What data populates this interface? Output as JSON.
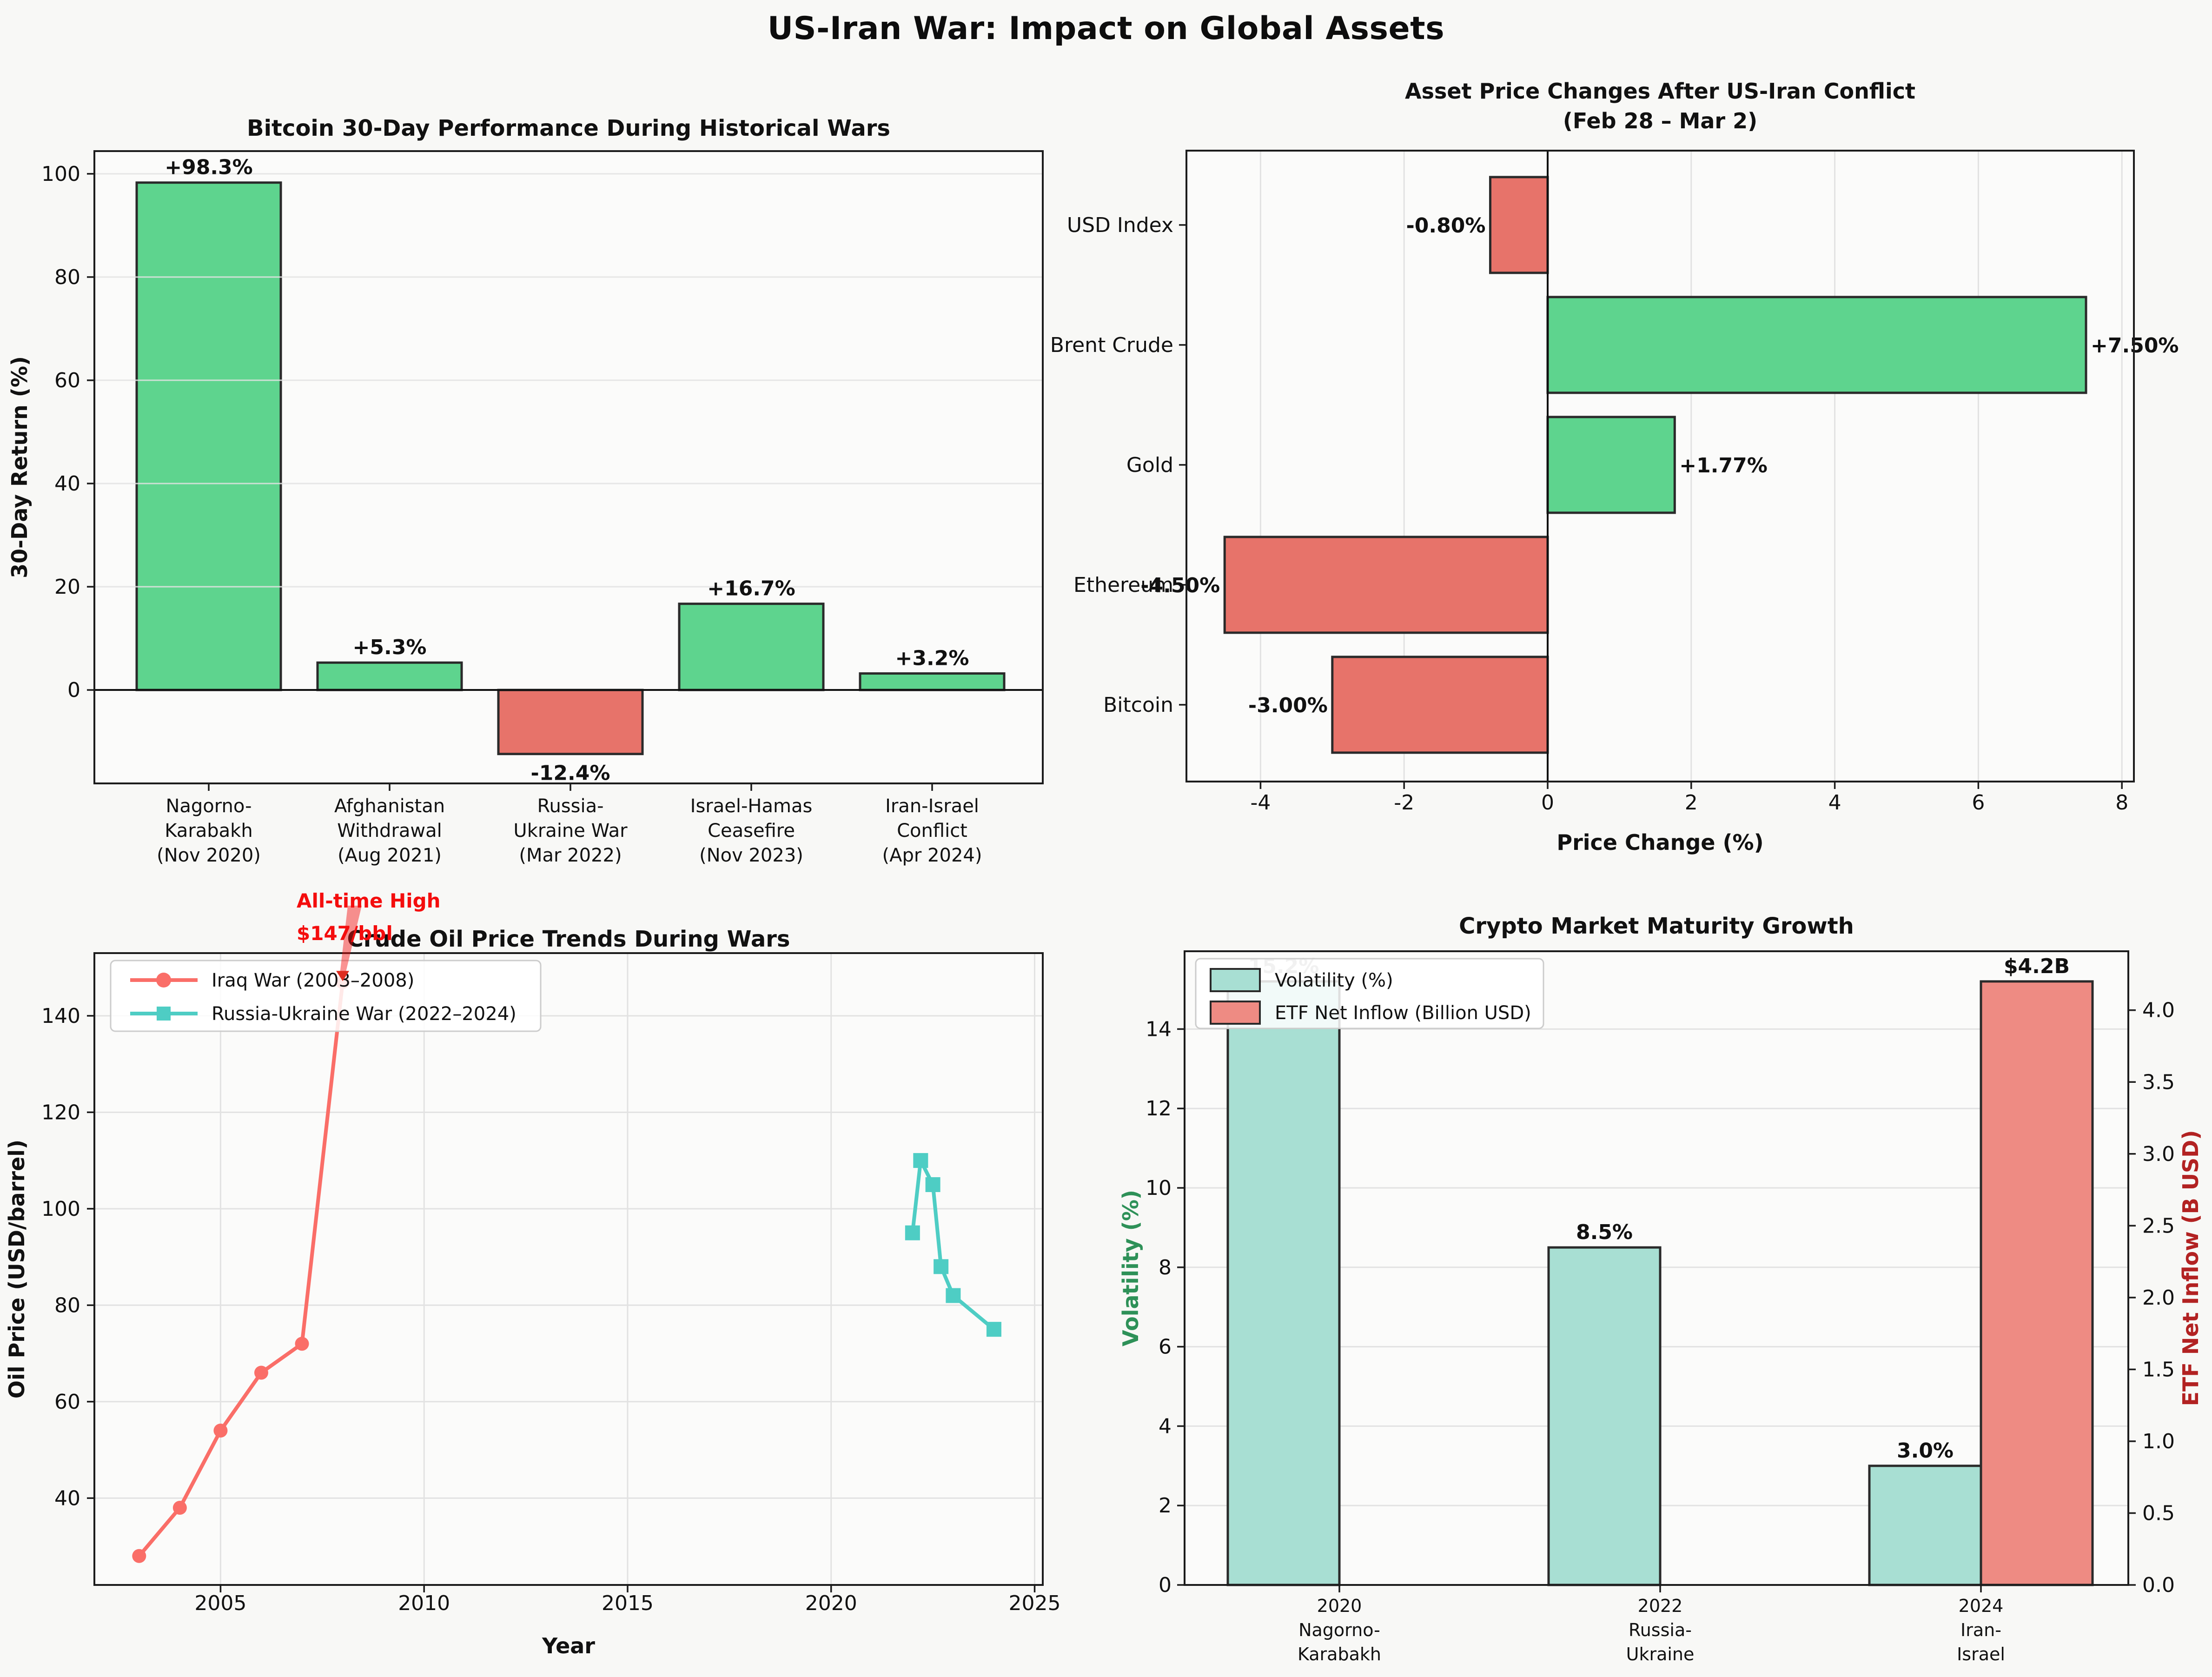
{
  "page_title": "US-Iran War: Impact on Global Assets",
  "colors": {
    "background": "#F8F8F6",
    "plot_background": "#FBFBFA",
    "positive_green": "#5ED48E",
    "negative_red": "#E7736A",
    "iraq_line_red": "#FA6E68",
    "russia_teal": "#4ECDC4",
    "volatility_mint": "#A8DFD3",
    "etf_salmon": "#EE8B83",
    "volatility_axis_green": "#2E9158",
    "etf_axis_darkred": "#B22222",
    "annotation_red": "#F40D0D",
    "grid": "#E2E2E2",
    "spine": "#1C1C1C",
    "bar_edge": "#2A2A2A",
    "zero_line": "#111111",
    "text": "#111111",
    "muted_label": "#A0A0A0",
    "legend_border": "#CCCCCC"
  },
  "chart_data": [
    {
      "id": "bitcoin-performance",
      "type": "bar",
      "title": "Bitcoin 30-Day Performance During Historical Wars",
      "ylabel": "30-Day Return (%)",
      "ylim": [
        -18.1,
        104.4
      ],
      "yticks": [
        0,
        20,
        40,
        60,
        80,
        100
      ],
      "grid": "horizontal",
      "categories": [
        [
          "Nagorno-",
          "Karabakh",
          "(Nov 2020)"
        ],
        [
          "Afghanistan",
          "Withdrawal",
          "(Aug 2021)"
        ],
        [
          "Russia-",
          "Ukraine War",
          "(Mar 2022)"
        ],
        [
          "Israel-Hamas",
          "Ceasefire",
          "(Nov 2023)"
        ],
        [
          "Iran-Israel",
          "Conflict",
          "(Apr 2024)"
        ]
      ],
      "values": [
        98.3,
        5.3,
        -12.4,
        16.7,
        3.2
      ],
      "value_labels": [
        "+98.3%",
        "+5.3%",
        "-12.4%",
        "+16.7%",
        "+3.2%"
      ]
    },
    {
      "id": "asset-price-changes",
      "type": "hbar",
      "title_lines": [
        "Asset Price Changes After US-Iran Conflict",
        "(Feb 28 – Mar 2)"
      ],
      "xlabel": "Price Change (%)",
      "xticks": [
        -4,
        -2,
        0,
        2,
        4,
        6,
        8
      ],
      "grid": "vertical",
      "categories": [
        "Bitcoin",
        "Ethereum",
        "Gold",
        "Brent Crude",
        "USD Index"
      ],
      "values": [
        -3.0,
        -4.5,
        1.77,
        7.5,
        -0.8
      ],
      "value_labels": [
        "-3.00%",
        "-4.50%",
        "+1.77%",
        "+7.50%",
        "-0.80%"
      ]
    },
    {
      "id": "oil-price-trends",
      "type": "line",
      "title": "Crude Oil Price Trends During Wars",
      "xlabel": "Year",
      "ylabel": "Oil Price (USD/barrel)",
      "xlim": [
        2001.9,
        2025.2
      ],
      "ylim": [
        22,
        153
      ],
      "xticks": [
        2005,
        2010,
        2015,
        2020,
        2025
      ],
      "yticks": [
        40,
        60,
        80,
        100,
        120,
        140
      ],
      "grid": "both",
      "series": [
        {
          "name": "Iraq War (2003–2008)",
          "marker": "circle",
          "color_key": "iraq_line_red",
          "x": [
            2003,
            2004,
            2005,
            2006,
            2007,
            2008
          ],
          "y": [
            28,
            38,
            54,
            66,
            72,
            147
          ]
        },
        {
          "name": "Russia-Ukraine War (2022–2024)",
          "marker": "square",
          "color_key": "russia_teal",
          "x": [
            2022,
            2022.2,
            2022.5,
            2022.7,
            2023,
            2024
          ],
          "y": [
            95,
            110,
            105,
            88,
            82,
            75
          ]
        }
      ],
      "annotation": {
        "text_lines": [
          "All-time High",
          "$147/bbl"
        ],
        "target_x": 2008,
        "target_y": 147
      }
    },
    {
      "id": "crypto-maturity",
      "type": "dual_bar",
      "title": "Crypto Market Maturity Growth",
      "ylabel_left": "Volatility (%)",
      "ylabel_right": "ETF Net Inflow (B USD)",
      "ylim_left": [
        0,
        15.96
      ],
      "yticks_left": [
        0,
        2,
        4,
        6,
        8,
        10,
        12,
        14
      ],
      "ylim_right": [
        0,
        4.41
      ],
      "yticks_right": [
        "0.0",
        "0.5",
        "1.0",
        "1.5",
        "2.0",
        "2.5",
        "3.0",
        "3.5",
        "4.0"
      ],
      "grid": "horizontal",
      "categories": [
        [
          "2020",
          "Nagorno-",
          "Karabakh"
        ],
        [
          "2022",
          "Russia-",
          "Ukraine"
        ],
        [
          "2024",
          "Iran-",
          "Israel"
        ]
      ],
      "legend": [
        "Volatility (%)",
        "ETF Net Inflow (Billion USD)"
      ],
      "volatility_values": [
        15.2,
        8.5,
        3.0
      ],
      "volatility_labels": [
        "15.2%",
        "8.5%",
        "3.0%"
      ],
      "etf_values": [
        0,
        0,
        4.2
      ],
      "etf_label": "$4.2B"
    }
  ]
}
